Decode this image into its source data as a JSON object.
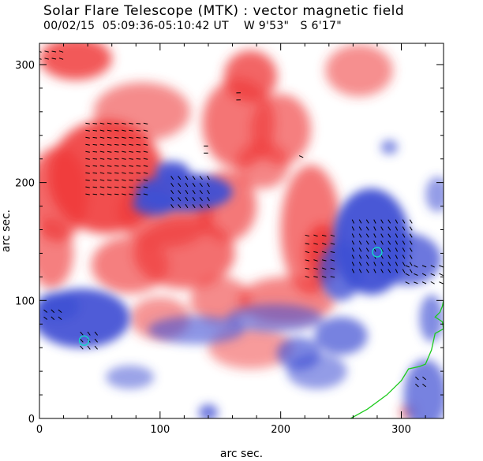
{
  "chart_data": {
    "type": "heatmap",
    "title": "Solar Flare Telescope (MTK) : vector magnetic field",
    "subtitle": {
      "date": "00/02/15",
      "time_range": "05:09:36-05:10:42 UT",
      "lon": "W 9'53\"",
      "lat": "S 6'17\""
    },
    "xlabel": "arc sec.",
    "ylabel": "arc sec.",
    "xlim": [
      0,
      335
    ],
    "ylim": [
      0,
      318
    ],
    "xticks": [
      0,
      100,
      200,
      300
    ],
    "yticks": [
      0,
      100,
      200,
      300
    ],
    "colors": {
      "positive_polarity": "#ef3a3a",
      "negative_polarity": "#3f4fd4",
      "neutral_line": "#ffffff",
      "boundary_contour": "#1ecb1e",
      "vector_arrow": "#000000",
      "marker_circle": "#19d0c8"
    },
    "positive_regions": [
      {
        "cx": 55,
        "cy": 205,
        "rx": 48,
        "ry": 48,
        "value": 1.0
      },
      {
        "cx": 15,
        "cy": 190,
        "rx": 25,
        "ry": 40,
        "value": 0.75
      },
      {
        "cx": 30,
        "cy": 305,
        "rx": 30,
        "ry": 18,
        "value": 0.9
      },
      {
        "cx": 85,
        "cy": 260,
        "rx": 40,
        "ry": 25,
        "value": 0.45
      },
      {
        "cx": 105,
        "cy": 175,
        "rx": 40,
        "ry": 30,
        "value": 0.6
      },
      {
        "cx": 120,
        "cy": 140,
        "rx": 42,
        "ry": 30,
        "value": 0.7
      },
      {
        "cx": 75,
        "cy": 130,
        "rx": 32,
        "ry": 24,
        "value": 0.55
      },
      {
        "cx": 165,
        "cy": 250,
        "rx": 30,
        "ry": 38,
        "value": 0.65
      },
      {
        "cx": 175,
        "cy": 290,
        "rx": 22,
        "ry": 22,
        "value": 0.8
      },
      {
        "cx": 155,
        "cy": 180,
        "rx": 25,
        "ry": 30,
        "value": 0.6
      },
      {
        "cx": 200,
        "cy": 245,
        "rx": 25,
        "ry": 30,
        "value": 0.55
      },
      {
        "cx": 185,
        "cy": 215,
        "rx": 22,
        "ry": 20,
        "value": 0.5
      },
      {
        "cx": 225,
        "cy": 160,
        "rx": 25,
        "ry": 55,
        "value": 0.65
      },
      {
        "cx": 235,
        "cy": 140,
        "rx": 15,
        "ry": 25,
        "value": 1.0
      },
      {
        "cx": 265,
        "cy": 295,
        "rx": 28,
        "ry": 22,
        "value": 0.4
      },
      {
        "cx": 205,
        "cy": 100,
        "rx": 40,
        "ry": 20,
        "value": 0.5
      },
      {
        "cx": 150,
        "cy": 100,
        "rx": 25,
        "ry": 20,
        "value": 0.45
      },
      {
        "cx": 175,
        "cy": 60,
        "rx": 35,
        "ry": 18,
        "value": 0.3
      },
      {
        "cx": 100,
        "cy": 85,
        "rx": 25,
        "ry": 18,
        "value": 0.35
      },
      {
        "cx": 10,
        "cy": 140,
        "rx": 18,
        "ry": 30,
        "value": 0.55
      },
      {
        "cx": 305,
        "cy": 5,
        "rx": 6,
        "ry": 6,
        "value": 0.6
      }
    ],
    "negative_regions": [
      {
        "cx": 120,
        "cy": 192,
        "rx": 40,
        "ry": 16,
        "value": 1.0
      },
      {
        "cx": 95,
        "cy": 182,
        "rx": 18,
        "ry": 10,
        "value": 0.9
      },
      {
        "cx": 110,
        "cy": 210,
        "rx": 14,
        "ry": 8,
        "value": 0.95
      },
      {
        "cx": 275,
        "cy": 150,
        "rx": 32,
        "ry": 45,
        "value": 1.0
      },
      {
        "cx": 305,
        "cy": 135,
        "rx": 28,
        "ry": 22,
        "value": 0.7
      },
      {
        "cx": 250,
        "cy": 125,
        "rx": 18,
        "ry": 25,
        "value": 0.75
      },
      {
        "cx": 35,
        "cy": 85,
        "rx": 40,
        "ry": 25,
        "value": 0.95
      },
      {
        "cx": 15,
        "cy": 95,
        "rx": 18,
        "ry": 12,
        "value": 0.8
      },
      {
        "cx": 250,
        "cy": 70,
        "rx": 22,
        "ry": 16,
        "value": 0.6
      },
      {
        "cx": 195,
        "cy": 85,
        "rx": 40,
        "ry": 12,
        "value": 0.35
      },
      {
        "cx": 130,
        "cy": 75,
        "rx": 40,
        "ry": 12,
        "value": 0.4
      },
      {
        "cx": 230,
        "cy": 40,
        "rx": 25,
        "ry": 15,
        "value": 0.35
      },
      {
        "cx": 215,
        "cy": 55,
        "rx": 18,
        "ry": 14,
        "value": 0.55
      },
      {
        "cx": 320,
        "cy": 20,
        "rx": 18,
        "ry": 30,
        "value": 0.6
      },
      {
        "cx": 140,
        "cy": 5,
        "rx": 8,
        "ry": 7,
        "value": 0.7
      },
      {
        "cx": 290,
        "cy": 230,
        "rx": 7,
        "ry": 6,
        "value": 0.5
      },
      {
        "cx": 325,
        "cy": 85,
        "rx": 10,
        "ry": 20,
        "value": 0.5
      },
      {
        "cx": 330,
        "cy": 190,
        "rx": 10,
        "ry": 15,
        "value": 0.35
      },
      {
        "cx": 75,
        "cy": 35,
        "rx": 20,
        "ry": 10,
        "value": 0.3
      }
    ],
    "vector_groups": [
      {
        "x0": 40,
        "x1": 90,
        "y0": 190,
        "y1": 250,
        "angle": 10,
        "spacing": 6
      },
      {
        "x0": 110,
        "x1": 140,
        "y0": 180,
        "y1": 205,
        "angle": 55,
        "spacing": 6
      },
      {
        "x0": 222,
        "x1": 245,
        "y0": 120,
        "y1": 160,
        "angle": 15,
        "spacing": 7
      },
      {
        "x0": 260,
        "x1": 310,
        "y0": 125,
        "y1": 170,
        "angle": 60,
        "spacing": 6
      },
      {
        "x0": 305,
        "x1": 335,
        "y0": 115,
        "y1": 130,
        "angle": 25,
        "spacing": 7
      },
      {
        "x0": 5,
        "x1": 20,
        "y0": 85,
        "y1": 95,
        "angle": 40,
        "spacing": 6
      },
      {
        "x0": 35,
        "x1": 50,
        "y0": 60,
        "y1": 75,
        "angle": 50,
        "spacing": 6
      },
      {
        "x0": 0,
        "x1": 20,
        "y0": 305,
        "y1": 315,
        "angle": 15,
        "spacing": 6
      },
      {
        "x0": 165,
        "x1": 170,
        "y0": 270,
        "y1": 278,
        "angle": 0,
        "spacing": 6
      },
      {
        "x0": 138,
        "x1": 142,
        "y0": 225,
        "y1": 232,
        "angle": 0,
        "spacing": 6
      },
      {
        "x0": 217,
        "x1": 220,
        "y0": 222,
        "y1": 225,
        "angle": 20,
        "spacing": 6
      },
      {
        "x0": 313,
        "x1": 322,
        "y0": 28,
        "y1": 38,
        "angle": 40,
        "spacing": 6
      }
    ],
    "markers": [
      {
        "x": 37,
        "y": 66
      },
      {
        "x": 280,
        "y": 141
      }
    ],
    "boundary_line": [
      [
        258,
        0
      ],
      [
        272,
        8
      ],
      [
        288,
        20
      ],
      [
        300,
        32
      ],
      [
        306,
        42
      ],
      [
        315,
        44
      ],
      [
        320,
        46
      ],
      [
        325,
        58
      ],
      [
        328,
        72
      ],
      [
        335,
        76
      ],
      [
        334,
        82
      ],
      [
        328,
        86
      ],
      [
        332,
        90
      ],
      [
        334,
        95
      ],
      [
        335,
        100
      ]
    ]
  }
}
